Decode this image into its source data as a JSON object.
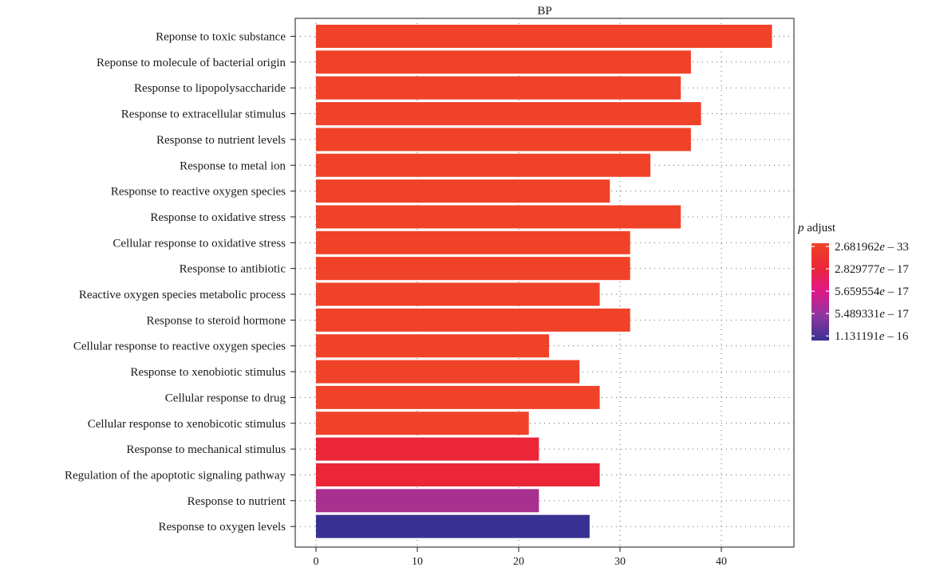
{
  "chart_data": {
    "type": "bar",
    "orientation": "horizontal",
    "title": "BP",
    "xlabel": "",
    "ylabel": "",
    "xlim": [
      0,
      47
    ],
    "x_ticks": [
      0,
      10,
      20,
      30,
      40
    ],
    "grid": true,
    "categories": [
      "Reponse to toxic substance",
      "Reponse to molecule of bacterial origin",
      "Response to lipopolysaccharide",
      "Response to extracellular stimulus",
      "Response to nutrient levels",
      "Response to metal ion",
      "Response to reactive oxygen species",
      "Response to oxidative stress",
      "Cellular response to oxidative stress",
      "Response to antibiotic",
      "Reactive oxygen species metabolic process",
      "Response to steroid hormone",
      "Cellular response to reactive oxygen species",
      "Response to xenobiotic stimulus",
      "Cellular response to drug",
      "Cellular response to xenobicotic stimulus",
      "Response to mechanical stimulus",
      "Regulation of the apoptotic signaling pathway",
      "Response to nutrient",
      "Response to oxygen levels"
    ],
    "values": [
      45,
      37,
      36,
      38,
      37,
      33,
      29,
      36,
      31,
      31,
      28,
      31,
      23,
      26,
      28,
      21,
      22,
      28,
      22,
      27
    ],
    "bar_colors": [
      "#f04228",
      "#f04228",
      "#f04228",
      "#f04228",
      "#f04228",
      "#f04228",
      "#f04228",
      "#f04228",
      "#f04228",
      "#f04228",
      "#f04228",
      "#f04228",
      "#f04228",
      "#f04228",
      "#f04228",
      "#f04228",
      "#ea2638",
      "#ea2638",
      "#a8308e",
      "#393191"
    ],
    "legend": {
      "title_italic": "p",
      "title_rest": " adjust",
      "position": "right",
      "entries": [
        {
          "mantissa": "2.681962",
          "exponent": "33",
          "color": "#f04228"
        },
        {
          "mantissa": "2.829777",
          "exponent": "17",
          "color": "#ea2638"
        },
        {
          "mantissa": "5.659554",
          "exponent": "17",
          "color": "#e0188a"
        },
        {
          "mantissa": "5.489331",
          "exponent": "17",
          "color": "#8c37a0"
        },
        {
          "mantissa": "1.131191",
          "exponent": "16",
          "color": "#393191"
        }
      ]
    }
  }
}
